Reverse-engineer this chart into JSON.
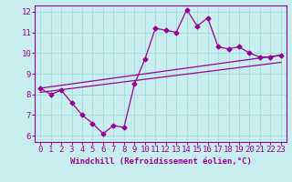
{
  "title": "",
  "xlabel": "Windchill (Refroidissement éolien,°C)",
  "ylabel": "",
  "bg_color": "#c8eef0",
  "line_color": "#990099",
  "grid_color": "#aadddd",
  "xlim": [
    -0.5,
    23.5
  ],
  "ylim": [
    5.7,
    12.3
  ],
  "yticks": [
    6,
    7,
    8,
    9,
    10,
    11,
    12
  ],
  "xticks": [
    0,
    1,
    2,
    3,
    4,
    5,
    6,
    7,
    8,
    9,
    10,
    11,
    12,
    13,
    14,
    15,
    16,
    17,
    18,
    19,
    20,
    21,
    22,
    23
  ],
  "series1_x": [
    0,
    1,
    2,
    3,
    4,
    5,
    6,
    7,
    8,
    9,
    10,
    11,
    12,
    13,
    14,
    15,
    16,
    17,
    18,
    19,
    20,
    21,
    22,
    23
  ],
  "series1_y": [
    8.3,
    8.0,
    8.2,
    7.6,
    7.0,
    6.6,
    6.1,
    6.5,
    6.4,
    8.5,
    9.7,
    11.2,
    11.1,
    11.0,
    12.1,
    11.3,
    11.7,
    10.3,
    10.2,
    10.3,
    10.0,
    9.8,
    9.8,
    9.9
  ],
  "series2_x": [
    0,
    23
  ],
  "series2_y": [
    8.3,
    9.9
  ],
  "series3_x": [
    0,
    23
  ],
  "series3_y": [
    8.1,
    9.55
  ],
  "marker": "D",
  "marker_size": 2.5,
  "font_family": "monospace",
  "font_size_xlabel": 6.5,
  "font_size_ticks": 6.5
}
